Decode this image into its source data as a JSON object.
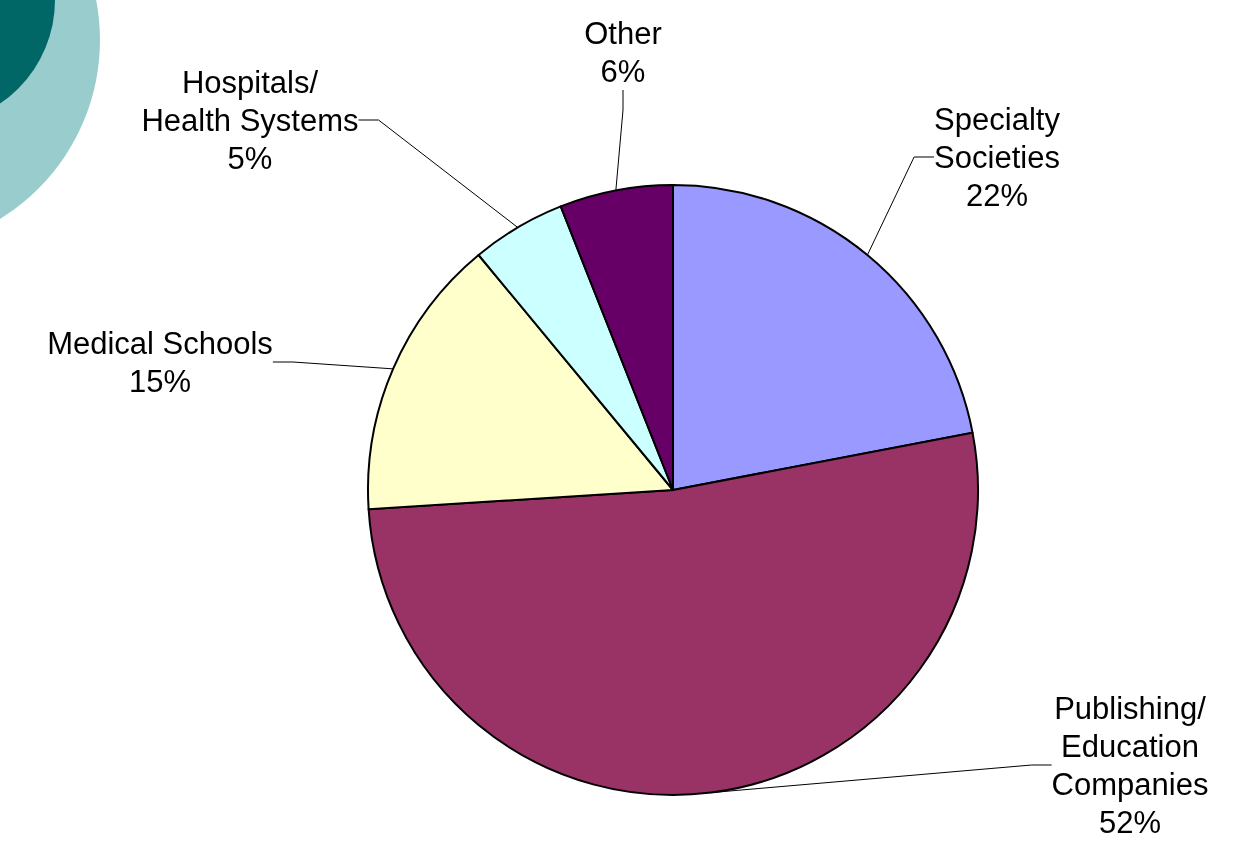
{
  "chart_data": {
    "type": "pie",
    "categories": [
      "Specialty\nSocieties",
      "Publishing/\nEducation\nCompanies",
      "Medical Schools",
      "Hospitals/\nHealth Systems",
      "Other"
    ],
    "values": [
      22,
      52,
      15,
      5,
      6
    ],
    "colors": [
      "#9999ff",
      "#993366",
      "#ffffcc",
      "#ccffff",
      "#660066"
    ],
    "value_labels": [
      "22%",
      "52%",
      "15%",
      "5%",
      "6%"
    ],
    "legend": false
  }
}
